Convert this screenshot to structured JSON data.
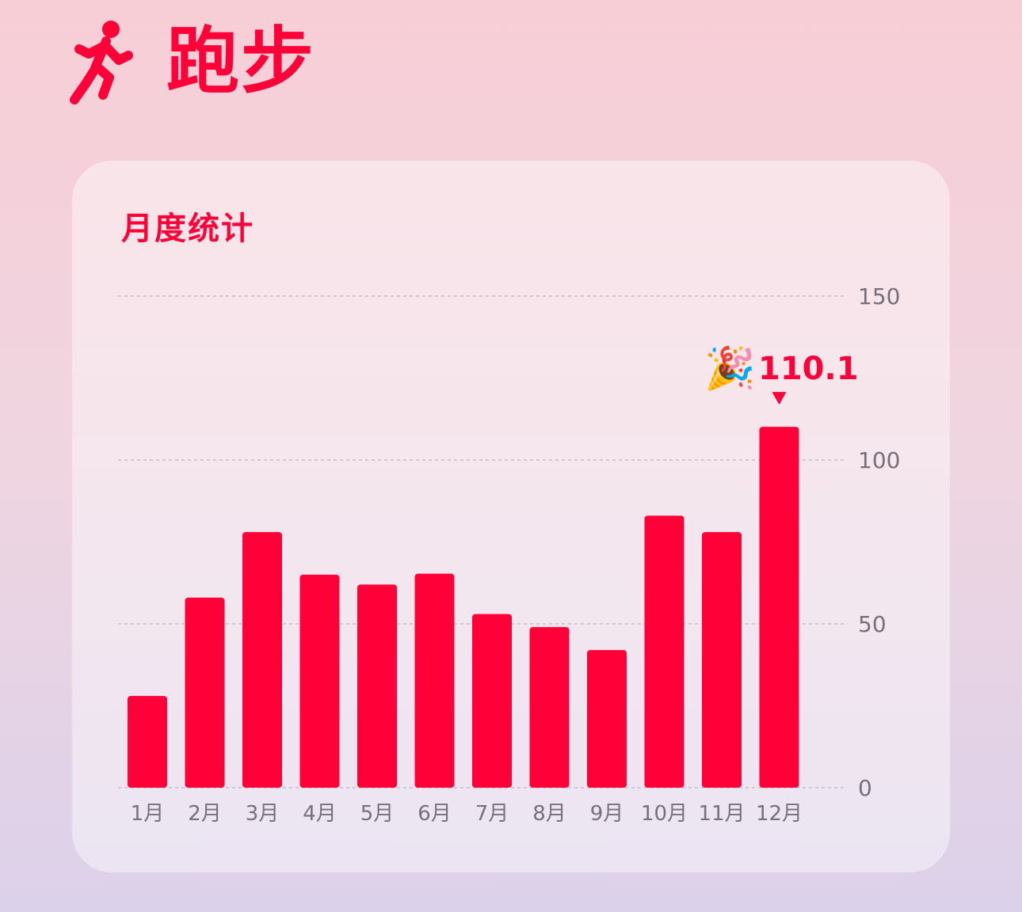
{
  "header": {
    "icon": "running-figure-icon",
    "title": "跑步"
  },
  "card": {
    "title": "月度统计"
  },
  "colors": {
    "accent": "#ff0038",
    "tick": "#77707a"
  },
  "chart_data": {
    "type": "bar",
    "title": "月度统计",
    "categories": [
      "1月",
      "2月",
      "3月",
      "4月",
      "5月",
      "6月",
      "7月",
      "8月",
      "9月",
      "10月",
      "11月",
      "12月"
    ],
    "values": [
      28,
      58,
      78,
      65,
      62,
      65.3,
      53,
      49,
      42,
      83,
      78,
      110.1
    ],
    "ylim": [
      0,
      150
    ],
    "yticks": [
      0,
      50,
      100,
      150
    ],
    "y_axis_position": "right",
    "grid": true,
    "highlight": {
      "index": 11,
      "label": "110.1",
      "icon": "party-popper-icon",
      "glyph": "🎉"
    }
  }
}
